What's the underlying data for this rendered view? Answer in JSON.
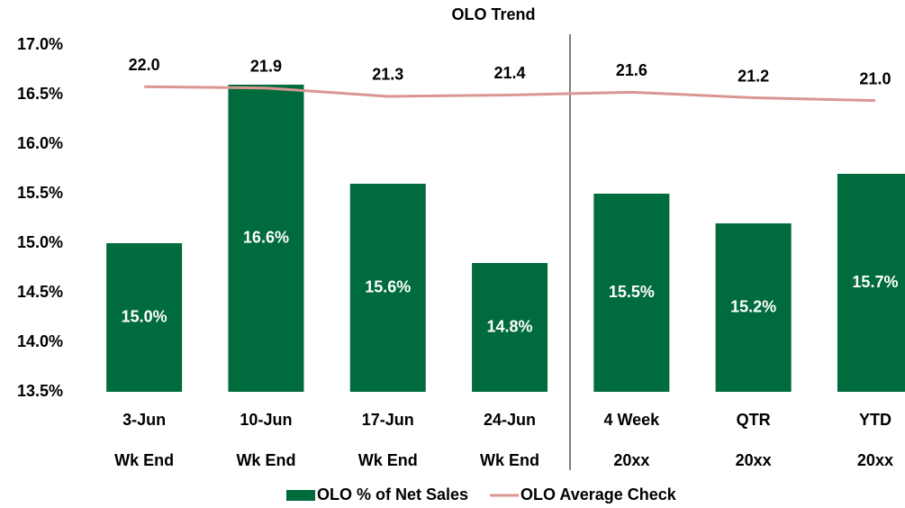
{
  "chart_data": {
    "type": "bar",
    "title": "OLO Trend",
    "categories": [
      "3-Jun",
      "10-Jun",
      "17-Jun",
      "24-Jun",
      "4 Week",
      "QTR",
      "YTD"
    ],
    "subcategories": [
      "Wk End",
      "Wk End",
      "Wk End",
      "Wk End",
      "20xx",
      "20xx",
      "20xx"
    ],
    "series": [
      {
        "name": "OLO % of Net Sales",
        "type": "bar",
        "color": "#006b3c",
        "values": [
          15.0,
          16.6,
          15.6,
          14.8,
          15.5,
          15.2,
          15.7
        ],
        "value_labels": [
          "15.0%",
          "16.6%",
          "15.6%",
          "14.8%",
          "15.5%",
          "15.2%",
          "15.7%"
        ]
      },
      {
        "name": "OLO Average Check",
        "type": "line",
        "axis": "y2",
        "color": "#d99694",
        "values": [
          22.0,
          21.9,
          21.3,
          21.4,
          21.6,
          21.2,
          21.0
        ],
        "value_labels": [
          "22.0",
          "21.9",
          "21.3",
          "21.4",
          "21.6",
          "21.2",
          "21.0"
        ]
      }
    ],
    "ylim": [
      13.5,
      17.0
    ],
    "yticks": [
      {
        "value": 13.5,
        "label": "13.5%"
      },
      {
        "value": 14.0,
        "label": "14.0%"
      },
      {
        "value": 14.5,
        "label": "14.5%"
      },
      {
        "value": 15.0,
        "label": "15.0%"
      },
      {
        "value": 15.5,
        "label": "15.5%"
      },
      {
        "value": 16.0,
        "label": "16.0%"
      },
      {
        "value": 16.5,
        "label": "16.5%"
      },
      {
        "value": 17.0,
        "label": "17.0%"
      }
    ],
    "y2lim": [
      0,
      25
    ],
    "grid": false,
    "legend": "bottom"
  }
}
